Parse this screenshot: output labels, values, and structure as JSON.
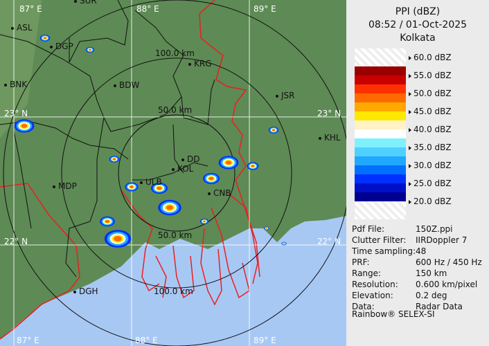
{
  "header": {
    "product": "PPI (dBZ)",
    "datetime": "08:52 / 01-Oct-2025",
    "station": "Kolkata"
  },
  "legend": {
    "ticks": [
      "60.0 dBZ",
      "55.0 dBZ",
      "50.0 dBZ",
      "45.0 dBZ",
      "40.0 dBZ",
      "35.0 dBZ",
      "30.0 dBZ",
      "25.0 dBZ",
      "20.0 dBZ"
    ],
    "colors": [
      "#9a0000",
      "#c80000",
      "#ff3000",
      "#ff6a00",
      "#ffa800",
      "#ffe800",
      "#fff2c4",
      "#ffffff",
      "#80f0ff",
      "#50d0ff",
      "#20a8ff",
      "#0070ff",
      "#0030ff",
      "#0010c8",
      "#000090"
    ]
  },
  "info": [
    {
      "label": "Pdf File:",
      "value": "150Z.ppi"
    },
    {
      "label": "Clutter Filter:",
      "value": "IIRDoppler 7"
    },
    {
      "label": "Time sampling:",
      "value": "48"
    },
    {
      "label": "PRF:",
      "value": "600 Hz / 450 Hz"
    },
    {
      "label": "Range:",
      "value": "150 km"
    },
    {
      "label": "Resolution:",
      "value": "0.600 km/pixel"
    },
    {
      "label": "Elevation:",
      "value": "0.2 deg"
    },
    {
      "label": "Data:",
      "value": "Radar Data"
    }
  ],
  "credit": "Rainbow® SELEX-SI",
  "map": {
    "grid": {
      "lon": [
        "87° E",
        "88° E",
        "89° E"
      ],
      "lat": [
        "23° N",
        "22° N"
      ]
    },
    "rings": [
      "50.0 km",
      "100.0 km",
      "50.0 km",
      "100.0 km"
    ],
    "cities": [
      "SUR",
      "ASL",
      "DGP",
      "BNK",
      "BDW",
      "KRG",
      "JSR",
      "KHL",
      "DD",
      "KOL",
      "ULB",
      "CNB",
      "MDP",
      "DGH"
    ],
    "colors": {
      "land": "#5e8a55",
      "sea": "#a8c8f4",
      "border": "#e82020",
      "district": "#111111"
    }
  }
}
